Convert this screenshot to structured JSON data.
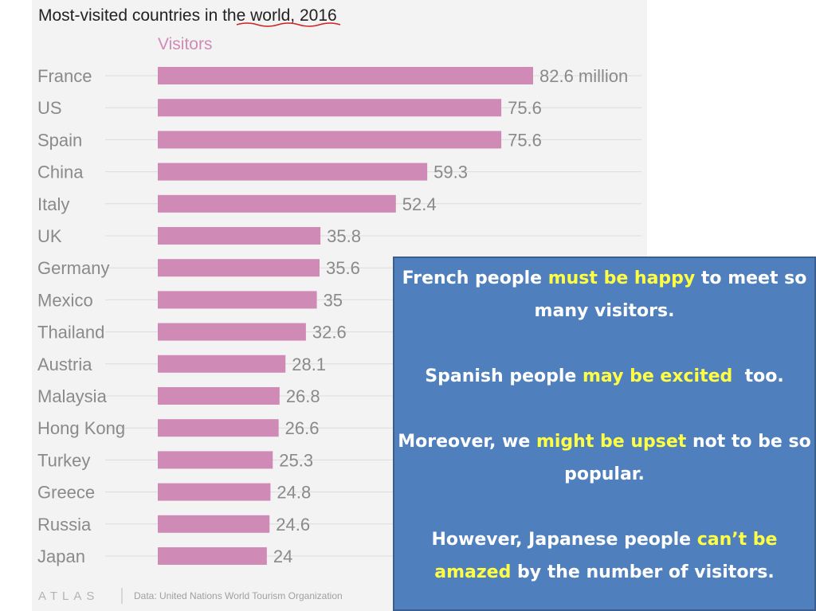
{
  "chart_data": {
    "type": "bar",
    "orientation": "horizontal",
    "title": "Most-visited countries in the world, 2016",
    "title_underlined": "in the world",
    "series_label": "Visitors",
    "categories": [
      "France",
      "US",
      "Spain",
      "China",
      "Italy",
      "UK",
      "Germany",
      "Mexico",
      "Thailand",
      "Austria",
      "Malaysia",
      "Hong Kong",
      "Turkey",
      "Greece",
      "Russia",
      "Japan"
    ],
    "values": [
      82.6,
      75.6,
      75.6,
      59.3,
      52.4,
      35.8,
      35.6,
      35,
      32.6,
      28.1,
      26.8,
      26.6,
      25.3,
      24.8,
      24.6,
      24
    ],
    "value_labels": [
      "82.6 million",
      "75.6",
      "75.6",
      "59.3",
      "52.4",
      "35.8",
      "35.6",
      "35",
      "32.6",
      "28.1",
      "26.8",
      "26.6",
      "25.3",
      "24.8",
      "24.6",
      "24"
    ],
    "xlim": [
      0,
      82.6
    ],
    "unit": "million",
    "bar_color": "#d08ab6",
    "grid": true
  },
  "footer": {
    "logo": "ATLAS",
    "source": "Data: United Nations World Tourism Organization"
  },
  "callout": {
    "background": "#4f80bd",
    "highlight_color": "#ffff44",
    "p1": {
      "a": "French people ",
      "hl": "must be happy",
      "b": " to meet so many visitors."
    },
    "p2": {
      "a": "Spanish people ",
      "hl": "may be excited",
      "b": "  too."
    },
    "p3": {
      "a": "Moreover, we ",
      "hl": "might be upset",
      "b": " not to be so popular."
    },
    "p4": {
      "a": "However, Japanese people ",
      "hl": "can’t be amazed",
      "b": " by the number of visitors."
    }
  }
}
